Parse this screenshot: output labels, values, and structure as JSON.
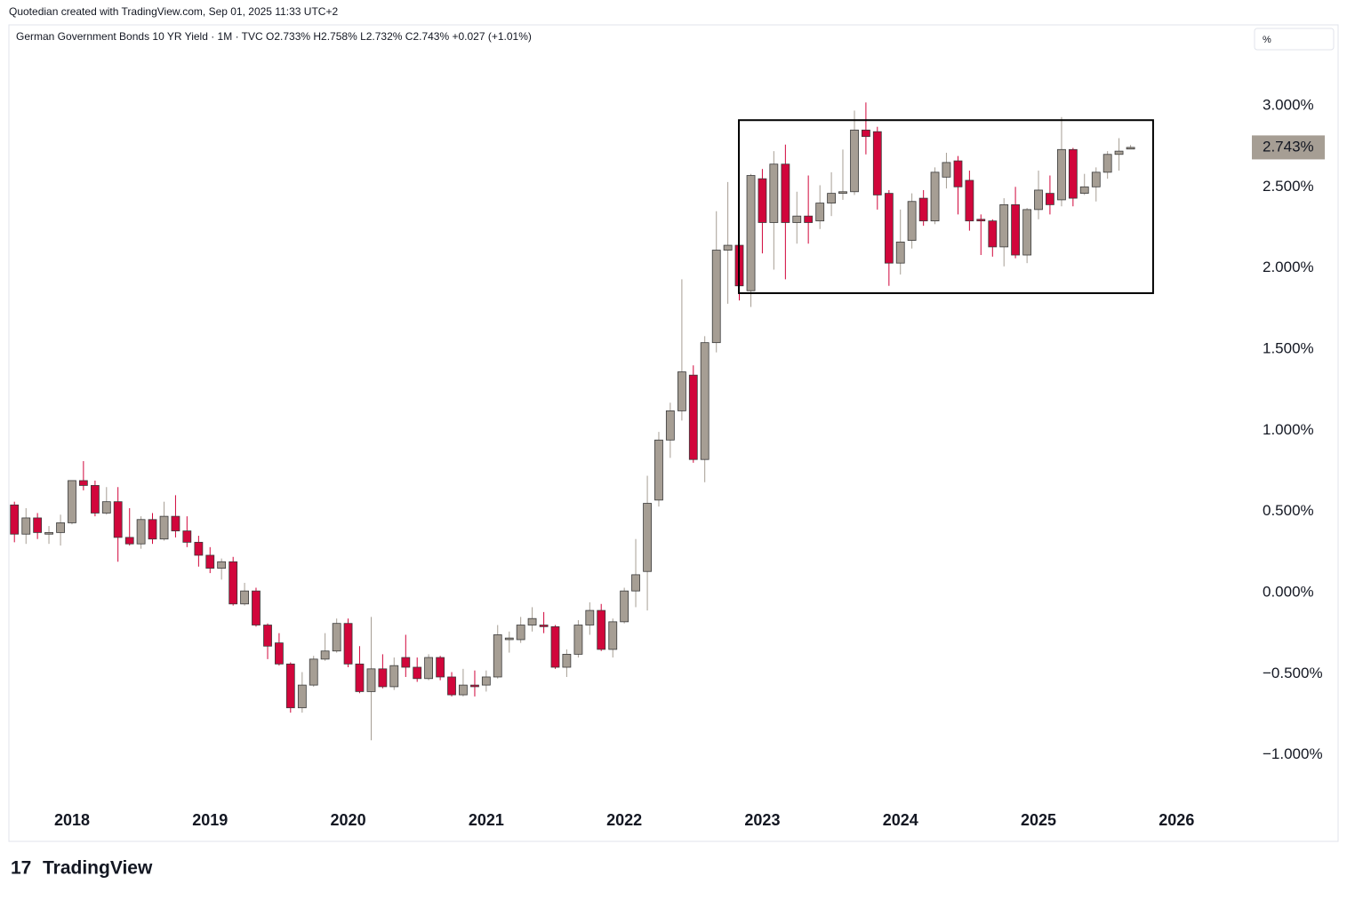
{
  "header": "Quotedian created with TradingView.com, Sep 01, 2025 11:33 UTC+2",
  "footer_logo": "TradingView",
  "chart_data": {
    "type": "candlestick",
    "legend": "German Government Bonds 10 YR Yield · 1M · TVC  O2.733%  H2.758%  L2.732%  C2.743%  +0.027 (+1.01%)",
    "unit_button": "%",
    "last_price": {
      "value": 2.743,
      "label": "2.743%"
    },
    "up_color": "#a69e94",
    "down_color": "#d1063b",
    "xlim": [
      2017.543,
      2026.526
    ],
    "xticks": [
      2018,
      2019,
      2020,
      2021,
      2022,
      2023,
      2024,
      2025,
      2026
    ],
    "ylim": [
      -1.303,
      3.498
    ],
    "yticks": [
      {
        "value": -1,
        "label": "−1.000%"
      },
      {
        "value": -0.5,
        "label": "−0.500%"
      },
      {
        "value": 0,
        "label": "0.000%"
      },
      {
        "value": 0.5,
        "label": "0.500%"
      },
      {
        "value": 1,
        "label": "1.000%"
      },
      {
        "value": 1.5,
        "label": "1.500%"
      },
      {
        "value": 2,
        "label": "2.000%"
      },
      {
        "value": 2.5,
        "label": "2.500%"
      },
      {
        "value": 3,
        "label": "3.000%"
      }
    ],
    "box": {
      "x": [
        2022.83,
        2025.83
      ],
      "y": [
        1.845,
        2.911
      ]
    },
    "x": [
      2017.583,
      2017.667,
      2017.75,
      2017.833,
      2017.917,
      2018,
      2018.083,
      2018.167,
      2018.25,
      2018.333,
      2018.417,
      2018.5,
      2018.583,
      2018.667,
      2018.75,
      2018.833,
      2018.917,
      2019,
      2019.083,
      2019.167,
      2019.25,
      2019.333,
      2019.417,
      2019.5,
      2019.583,
      2019.667,
      2019.75,
      2019.833,
      2019.917,
      2020,
      2020.083,
      2020.167,
      2020.25,
      2020.333,
      2020.417,
      2020.5,
      2020.583,
      2020.667,
      2020.75,
      2020.833,
      2020.917,
      2021,
      2021.083,
      2021.167,
      2021.25,
      2021.333,
      2021.417,
      2021.5,
      2021.583,
      2021.667,
      2021.75,
      2021.833,
      2021.917,
      2022,
      2022.083,
      2022.167,
      2022.25,
      2022.333,
      2022.417,
      2022.5,
      2022.583,
      2022.667,
      2022.75,
      2022.833,
      2022.917,
      2023,
      2023.083,
      2023.167,
      2023.25,
      2023.333,
      2023.417,
      2023.5,
      2023.583,
      2023.667,
      2023.75,
      2023.833,
      2023.917,
      2024,
      2024.083,
      2024.167,
      2024.25,
      2024.333,
      2024.417,
      2024.5,
      2024.583,
      2024.667,
      2024.75,
      2024.833,
      2024.917,
      2025,
      2025.083,
      2025.167,
      2025.25,
      2025.333,
      2025.417,
      2025.5,
      2025.583,
      2025.667
    ],
    "open": [
      0.54,
      0.36,
      0.46,
      0.36,
      0.37,
      0.43,
      0.69,
      0.66,
      0.49,
      0.56,
      0.34,
      0.3,
      0.45,
      0.33,
      0.47,
      0.38,
      0.31,
      0.23,
      0.15,
      0.19,
      -0.07,
      0.01,
      -0.2,
      -0.31,
      -0.44,
      -0.71,
      -0.57,
      -0.41,
      -0.36,
      -0.19,
      -0.44,
      -0.61,
      -0.47,
      -0.58,
      -0.4,
      -0.46,
      -0.53,
      -0.4,
      -0.52,
      -0.63,
      -0.57,
      -0.57,
      -0.52,
      -0.29,
      -0.29,
      -0.2,
      -0.2,
      -0.21,
      -0.46,
      -0.38,
      -0.2,
      -0.11,
      -0.35,
      -0.18,
      0.01,
      0.13,
      0.57,
      0.94,
      1.12,
      1.34,
      0.82,
      1.54,
      2.11,
      2.14,
      1.86,
      2.55,
      2.28,
      2.64,
      2.28,
      2.32,
      2.29,
      2.4,
      2.46,
      2.47,
      2.85,
      2.84,
      2.46,
      2.03,
      2.17,
      2.43,
      2.29,
      2.56,
      2.66,
      2.54,
      2.3,
      2.29,
      2.13,
      2.39,
      2.08,
      2.36,
      2.46,
      2.42,
      2.73,
      2.46,
      2.5,
      2.59,
      2.7,
      2.733
    ],
    "high": [
      0.56,
      0.52,
      0.49,
      0.41,
      0.48,
      0.69,
      0.81,
      0.69,
      0.65,
      0.65,
      0.52,
      0.47,
      0.49,
      0.56,
      0.6,
      0.47,
      0.35,
      0.28,
      0.21,
      0.22,
      0.06,
      0.03,
      -0.19,
      -0.25,
      -0.43,
      -0.49,
      -0.39,
      -0.25,
      -0.16,
      -0.16,
      -0.33,
      -0.15,
      -0.38,
      -0.4,
      -0.26,
      -0.4,
      -0.38,
      -0.39,
      -0.49,
      -0.47,
      -0.48,
      -0.48,
      -0.2,
      -0.24,
      -0.15,
      -0.09,
      -0.12,
      -0.2,
      -0.35,
      -0.17,
      -0.06,
      -0.07,
      -0.16,
      0.03,
      0.33,
      0.72,
      0.99,
      1.17,
      1.93,
      1.4,
      1.58,
      2.35,
      2.53,
      2.31,
      2.58,
      2.61,
      2.72,
      2.76,
      2.47,
      2.57,
      2.51,
      2.59,
      2.73,
      2.97,
      3.02,
      2.87,
      2.48,
      2.36,
      2.46,
      2.48,
      2.62,
      2.71,
      2.69,
      2.6,
      2.33,
      2.3,
      2.43,
      2.5,
      2.37,
      2.6,
      2.57,
      2.93,
      2.74,
      2.58,
      2.62,
      2.72,
      2.8,
      2.758
    ],
    "low": [
      0.31,
      0.3,
      0.33,
      0.3,
      0.29,
      0.42,
      0.63,
      0.47,
      0.48,
      0.19,
      0.29,
      0.27,
      0.3,
      0.32,
      0.34,
      0.28,
      0.16,
      0.12,
      0.08,
      -0.08,
      -0.08,
      -0.21,
      -0.41,
      -0.45,
      -0.74,
      -0.74,
      -0.58,
      -0.42,
      -0.37,
      -0.46,
      -0.62,
      -0.91,
      -0.59,
      -0.6,
      -0.52,
      -0.55,
      -0.54,
      -0.54,
      -0.64,
      -0.64,
      -0.64,
      -0.61,
      -0.53,
      -0.37,
      -0.31,
      -0.24,
      -0.25,
      -0.47,
      -0.52,
      -0.4,
      -0.26,
      -0.36,
      -0.4,
      -0.19,
      -0.09,
      -0.11,
      0.53,
      0.83,
      1.06,
      0.8,
      0.68,
      1.48,
      1.78,
      1.8,
      1.76,
      2.09,
      1.99,
      1.93,
      2.15,
      2.15,
      2.24,
      2.32,
      2.42,
      2.45,
      2.7,
      2.36,
      1.89,
      1.96,
      2.12,
      2.26,
      2.27,
      2.49,
      2.33,
      2.23,
      2.08,
      2.07,
      2.01,
      2.06,
      2.03,
      2.3,
      2.33,
      2.38,
      2.38,
      2.45,
      2.41,
      2.55,
      2.6,
      2.732
    ],
    "close": [
      0.36,
      0.46,
      0.37,
      0.37,
      0.43,
      0.69,
      0.66,
      0.49,
      0.56,
      0.34,
      0.3,
      0.45,
      0.33,
      0.47,
      0.38,
      0.31,
      0.23,
      0.15,
      0.19,
      -0.07,
      0.01,
      -0.2,
      -0.33,
      -0.44,
      -0.71,
      -0.57,
      -0.41,
      -0.36,
      -0.19,
      -0.44,
      -0.61,
      -0.47,
      -0.58,
      -0.45,
      -0.46,
      -0.53,
      -0.4,
      -0.52,
      -0.63,
      -0.57,
      -0.58,
      -0.52,
      -0.26,
      -0.28,
      -0.2,
      -0.16,
      -0.21,
      -0.46,
      -0.38,
      -0.2,
      -0.11,
      -0.35,
      -0.18,
      0.01,
      0.11,
      0.55,
      0.94,
      1.12,
      1.36,
      0.82,
      1.54,
      2.11,
      2.14,
      1.89,
      2.57,
      2.28,
      2.64,
      2.28,
      2.32,
      2.28,
      2.4,
      2.46,
      2.47,
      2.85,
      2.81,
      2.45,
      2.03,
      2.16,
      2.41,
      2.29,
      2.59,
      2.65,
      2.5,
      2.29,
      2.29,
      2.13,
      2.39,
      2.08,
      2.36,
      2.48,
      2.39,
      2.73,
      2.43,
      2.5,
      2.59,
      2.7,
      2.72,
      2.743
    ]
  }
}
